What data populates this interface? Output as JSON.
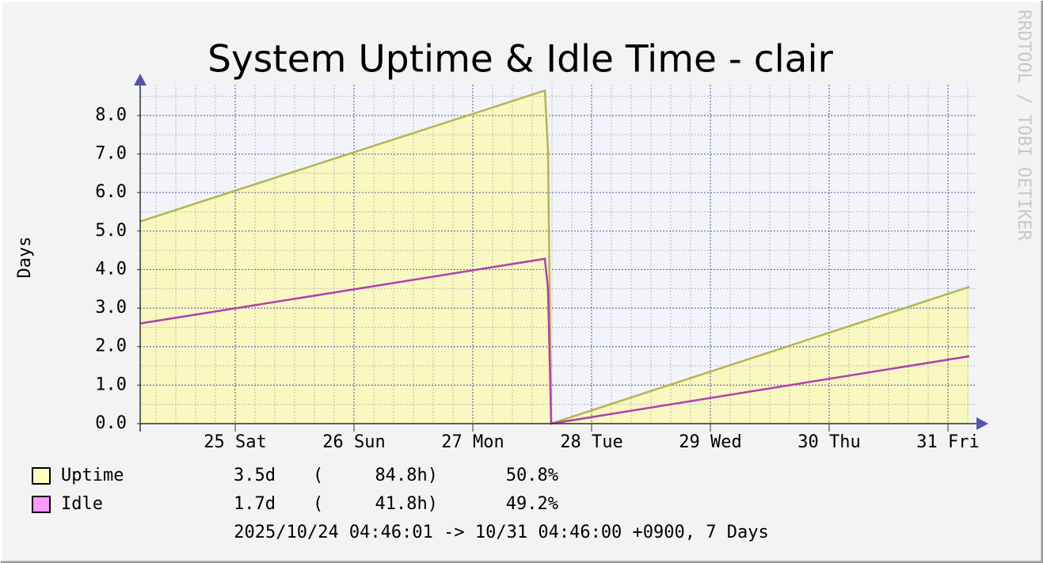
{
  "chart_data": {
    "type": "area",
    "title": "System Uptime & Idle Time - clair",
    "ylabel": "Days",
    "watermark": "RRDTOOL / TOBI OETIKER",
    "footer": "2025/10/24 04:46:01 -> 10/31 04:46:00 +0900, 7 Days",
    "xlim": [
      24.2,
      31.2
    ],
    "xticks": [
      {
        "value": 25,
        "label": "25 Sat"
      },
      {
        "value": 26,
        "label": "26 Sun"
      },
      {
        "value": 27,
        "label": "27 Mon"
      },
      {
        "value": 28,
        "label": "28 Tue"
      },
      {
        "value": 29,
        "label": "29 Wed"
      },
      {
        "value": 30,
        "label": "30 Thu"
      },
      {
        "value": 31,
        "label": "31 Fri"
      }
    ],
    "ylim": [
      0,
      8.8
    ],
    "yticks": [
      {
        "value": 0,
        "label": "0.0"
      },
      {
        "value": 1,
        "label": "1.0"
      },
      {
        "value": 2,
        "label": "2.0"
      },
      {
        "value": 3,
        "label": "3.0"
      },
      {
        "value": 4,
        "label": "4.0"
      },
      {
        "value": 5,
        "label": "5.0"
      },
      {
        "value": 6,
        "label": "6.0"
      },
      {
        "value": 7,
        "label": "7.0"
      },
      {
        "value": 8,
        "label": "8.0"
      }
    ],
    "grid": true,
    "x": [
      24.2,
      27.607,
      27.633,
      27.66,
      31.18
    ],
    "series": [
      {
        "name": "Uptime",
        "color": "#b5b552",
        "fill": "#f8f8c0",
        "legend_color": "#ffffc0",
        "values": [
          5.25,
          8.65,
          7.1,
          0,
          3.55
        ],
        "stats": [
          "3.5d",
          "(",
          "84.8h)",
          "50.8%"
        ]
      },
      {
        "name": "Idle",
        "color": "#b040b0",
        "legend_color": "#ff99ff",
        "values": [
          2.6,
          4.28,
          3.5,
          0,
          1.75
        ],
        "stats": [
          "1.7d",
          "(",
          "41.8h)",
          "49.2%"
        ]
      }
    ]
  }
}
